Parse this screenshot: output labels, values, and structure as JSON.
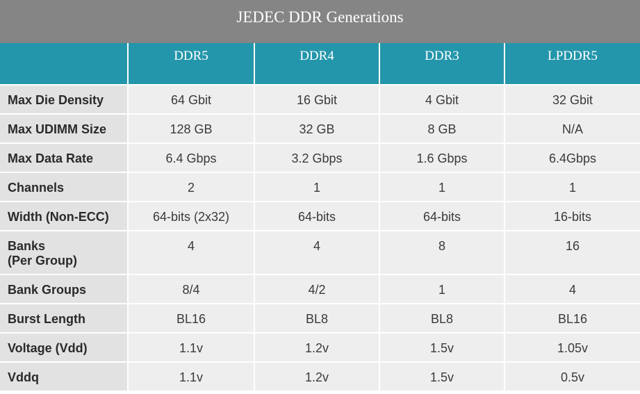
{
  "title": "JEDEC DDR Generations",
  "columns": [
    "",
    "DDR5",
    "DDR4",
    "DDR3",
    "LPDDR5"
  ],
  "rows": [
    {
      "label": [
        "Max Die Density"
      ],
      "values": [
        "64 Gbit",
        "16 Gbit",
        "4 Gbit",
        "32 Gbit"
      ]
    },
    {
      "label": [
        "Max UDIMM Size"
      ],
      "values": [
        "128 GB",
        "32 GB",
        "8 GB",
        "N/A"
      ]
    },
    {
      "label": [
        "Max Data Rate"
      ],
      "values": [
        "6.4 Gbps",
        "3.2 Gbps",
        "1.6 Gbps",
        "6.4Gbps"
      ]
    },
    {
      "label": [
        "Channels"
      ],
      "values": [
        "2",
        "1",
        "1",
        "1"
      ]
    },
    {
      "label": [
        "Width (Non-ECC)"
      ],
      "values": [
        "64-bits (2x32)",
        "64-bits",
        "64-bits",
        "16-bits"
      ]
    },
    {
      "label": [
        "Banks",
        "(Per Group)"
      ],
      "values": [
        "4",
        "4",
        "8",
        "16"
      ]
    },
    {
      "label": [
        "Bank Groups"
      ],
      "values": [
        "8/4",
        "4/2",
        "1",
        "4"
      ]
    },
    {
      "label": [
        "Burst Length"
      ],
      "values": [
        "BL16",
        "BL8",
        "BL8",
        "BL16"
      ]
    },
    {
      "label": [
        "Voltage (Vdd)"
      ],
      "values": [
        "1.1v",
        "1.2v",
        "1.5v",
        "1.05v"
      ]
    },
    {
      "label": [
        "Vddq"
      ],
      "values": [
        "1.1v",
        "1.2v",
        "1.5v",
        "0.5v"
      ]
    }
  ]
}
